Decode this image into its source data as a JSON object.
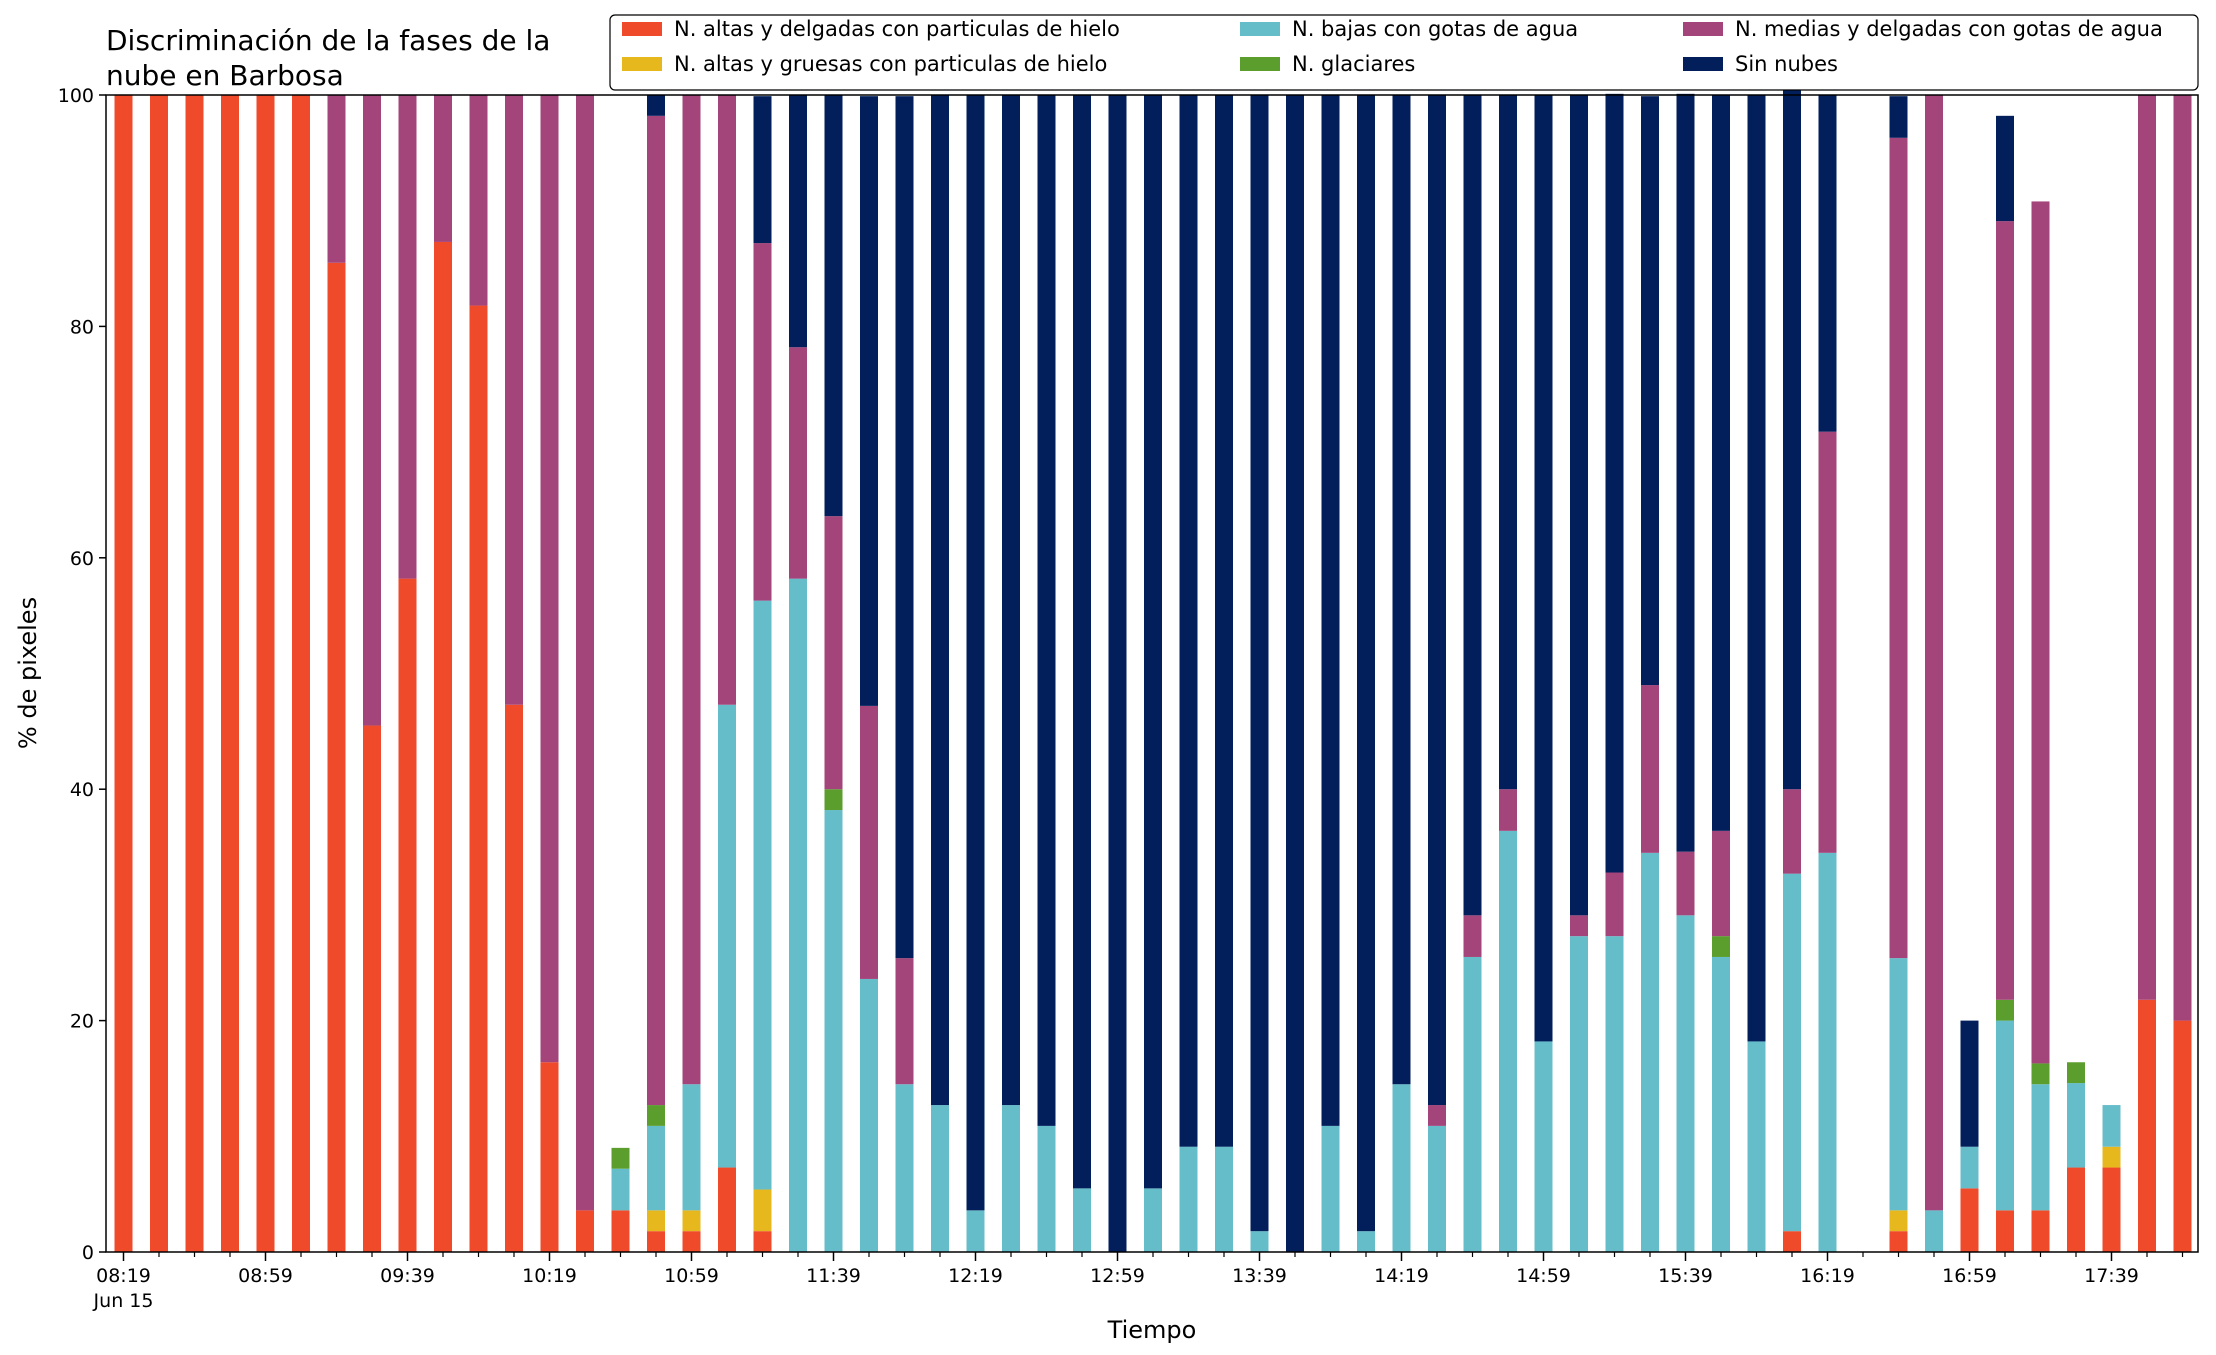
{
  "chart_data": {
    "type": "bar",
    "stacked": true,
    "title_lines": [
      "Discriminación de la fases de la",
      "nube en Barbosa"
    ],
    "xlabel": "Tiempo",
    "ylabel": "% de pixeles",
    "ylim": [
      0,
      100
    ],
    "yticks": [
      "0",
      "20",
      "40",
      "60",
      "80",
      "100"
    ],
    "xtick_labels": [
      "08:19",
      "08:59",
      "09:39",
      "10:19",
      "10:59",
      "11:39",
      "12:19",
      "12:59",
      "13:39",
      "14:19",
      "14:59",
      "15:39",
      "16:19",
      "16:59",
      "17:39"
    ],
    "date_label": "Jun 15",
    "grid": false,
    "legend_position": "top-right",
    "series": [
      {
        "name": "N. altas y delgadas con particulas de hielo",
        "color": "#EF4A2A",
        "values": [
          100,
          100,
          100,
          100,
          100,
          100,
          85.5,
          45.5,
          58.2,
          87.3,
          81.8,
          47.3,
          16.4,
          3.6,
          3.6,
          1.8,
          1.8,
          7.3,
          1.8,
          0,
          0,
          0,
          0,
          0,
          0,
          0,
          0,
          0,
          0,
          0,
          0,
          0,
          0,
          0,
          0,
          0,
          0,
          0,
          0,
          0,
          0,
          0,
          0,
          0,
          0,
          0,
          0,
          1.8,
          0,
          0,
          1.8,
          0,
          5.5,
          3.6,
          3.6,
          7.3,
          7.3,
          21.8,
          20
        ]
      },
      {
        "name": "N. altas y gruesas con particulas de hielo",
        "color": "#E6B81E",
        "values": [
          0,
          0,
          0,
          0,
          0,
          0,
          0,
          0,
          0,
          0,
          0,
          0,
          0,
          0,
          0,
          1.8,
          1.8,
          0,
          3.6,
          0,
          0,
          0,
          0,
          0,
          0,
          0,
          0,
          0,
          0,
          0,
          0,
          0,
          0,
          0,
          0,
          0,
          0,
          0,
          0,
          0,
          0,
          0,
          0,
          0,
          0,
          0,
          0,
          0,
          0,
          0,
          1.8,
          0,
          0,
          0,
          0,
          0,
          1.8,
          0,
          0
        ]
      },
      {
        "name": "N. bajas con gotas de agua",
        "color": "#66BDCA",
        "values": [
          0,
          0,
          0,
          0,
          0,
          0,
          0,
          0,
          0,
          0,
          0,
          0,
          0,
          0,
          3.6,
          7.3,
          10.9,
          40,
          50.9,
          58.2,
          38.2,
          23.6,
          14.5,
          12.7,
          3.6,
          12.7,
          10.9,
          5.5,
          0,
          5.5,
          9.1,
          9.1,
          1.8,
          0,
          10.9,
          1.8,
          14.5,
          10.9,
          25.5,
          36.4,
          18.2,
          27.3,
          27.3,
          34.5,
          29.1,
          25.5,
          18.2,
          30.9,
          34.5,
          0,
          21.8,
          3.6,
          3.6,
          16.4,
          10.9,
          7.3,
          3.6,
          0,
          0
        ]
      },
      {
        "name": "N. glaciares",
        "color": "#5C9E2E",
        "values": [
          0,
          0,
          0,
          0,
          0,
          0,
          0,
          0,
          0,
          0,
          0,
          0,
          0,
          0,
          1.8,
          1.8,
          0,
          0,
          0,
          0,
          1.8,
          0,
          0,
          0,
          0,
          0,
          0,
          0,
          0,
          0,
          0,
          0,
          0,
          0,
          0,
          0,
          0,
          0,
          0,
          0,
          0,
          0,
          0,
          0,
          0,
          1.8,
          0,
          0,
          0,
          0,
          0,
          0,
          0,
          1.8,
          1.8,
          1.8,
          0,
          0,
          0
        ]
      },
      {
        "name": "N. medias y delgadas con gotas de agua",
        "color": "#A3447A",
        "values": [
          0,
          0,
          0,
          0,
          0,
          0,
          14.5,
          54.5,
          41.8,
          12.7,
          18.2,
          52.7,
          83.6,
          96.4,
          0,
          85.5,
          85.5,
          52.7,
          30.9,
          20,
          23.6,
          23.6,
          10.9,
          0,
          0,
          0,
          0,
          0,
          0,
          0,
          0,
          0,
          0,
          0,
          0,
          0,
          0,
          1.8,
          3.6,
          3.6,
          0,
          1.8,
          5.5,
          14.5,
          5.5,
          9.1,
          0,
          7.3,
          36.4,
          0,
          70.9,
          96.4,
          0,
          67.3,
          74.5,
          0,
          0,
          78.2,
          80
        ]
      },
      {
        "name": "Sin nubes",
        "color": "#021F5C",
        "values": [
          0,
          0,
          0,
          0,
          0,
          0,
          0,
          0,
          0,
          0,
          0,
          0,
          0,
          0,
          0,
          1.8,
          0,
          0,
          12.7,
          21.8,
          36.4,
          52.7,
          74.5,
          87.3,
          96.4,
          87.3,
          89.1,
          94.5,
          100,
          94.5,
          90.9,
          90.9,
          98.2,
          100,
          89.1,
          98.2,
          85.5,
          87.3,
          70.9,
          60,
          81.8,
          70.9,
          67.3,
          50.9,
          65.5,
          63.6,
          81.8,
          61.8,
          29.1,
          0,
          3.6,
          0,
          10.9,
          9.1,
          0,
          0,
          0,
          0,
          0
        ]
      }
    ]
  }
}
